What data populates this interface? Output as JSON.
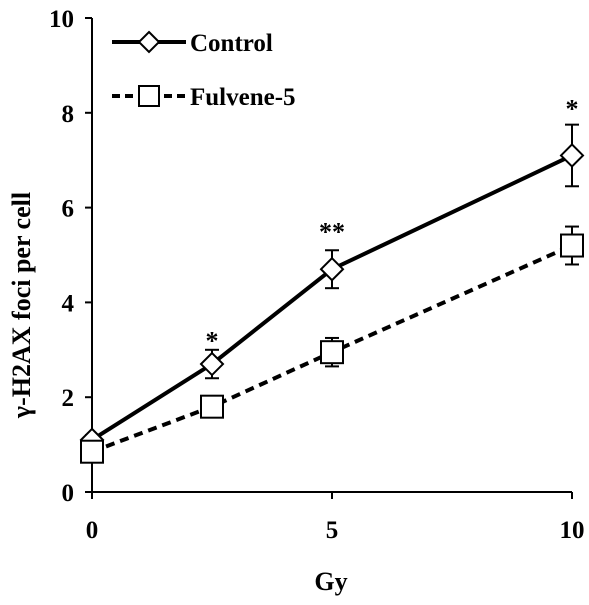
{
  "chart_data": {
    "type": "line",
    "xlabel": "Gy",
    "ylabel": "γ-H2AX foci per cell",
    "x": [
      0,
      2.5,
      5,
      10
    ],
    "xticks": [
      0,
      5,
      10
    ],
    "yticks": [
      0,
      2,
      4,
      6,
      8,
      10
    ],
    "xlim": [
      0,
      10
    ],
    "ylim": [
      0,
      10
    ],
    "grid": false,
    "legend_position": "top-left",
    "series": [
      {
        "name": "Control",
        "marker": "diamond-open",
        "line_style": "solid",
        "color": "#000000",
        "values": [
          1.1,
          2.7,
          4.7,
          7.1
        ],
        "errors": [
          0.1,
          0.3,
          0.4,
          0.65
        ]
      },
      {
        "name": "Fulvene-5",
        "marker": "square-open",
        "line_style": "dashed",
        "color": "#000000",
        "values": [
          0.85,
          1.8,
          2.95,
          5.2
        ],
        "errors": [
          0.05,
          0.1,
          0.3,
          0.4
        ]
      }
    ],
    "annotations": [
      {
        "x": 2.5,
        "y": 3.3,
        "text": "*"
      },
      {
        "x": 5,
        "y": 5.6,
        "text": "**"
      },
      {
        "x": 10,
        "y": 8.2,
        "text": "*"
      }
    ]
  }
}
